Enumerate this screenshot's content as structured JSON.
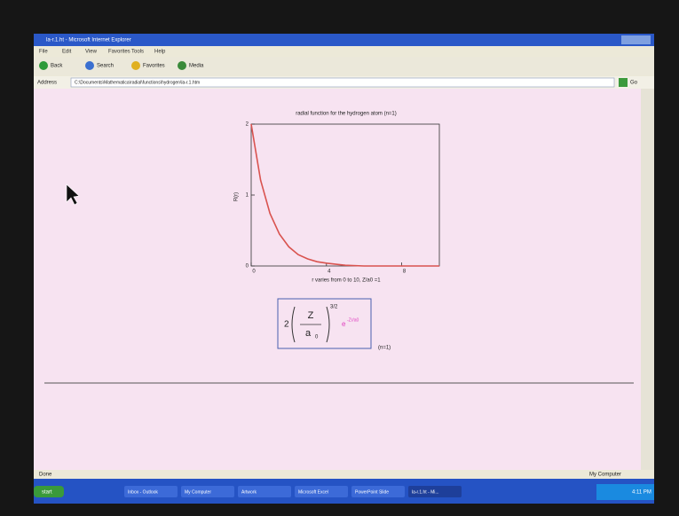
{
  "window": {
    "title": "la-r.1.ht - Microsoft Internet Explorer"
  },
  "menu": [
    "File",
    "Edit",
    "View",
    "Favorites",
    "Tools",
    "Help"
  ],
  "toolbar": [
    "Back",
    "Search",
    "Favorites",
    "Media"
  ],
  "address": {
    "label": "Address",
    "url": "C:\\Documents\\Mathematica\\radial\\functions\\hydrogen\\la-r.1.htm",
    "go": "Go"
  },
  "chart_data": {
    "type": "line",
    "title": "radial function for the hydrogen atom (n=1)",
    "y_label": "R(r)",
    "x_label": "r varies from 0 to 10, Z/a0 =1",
    "x": [
      0,
      0.5,
      1,
      1.5,
      2,
      2.5,
      3,
      3.5,
      4,
      5,
      6,
      7,
      8,
      9,
      10
    ],
    "series": [
      {
        "name": "R(r)",
        "color": "#d9534f",
        "values": [
          2,
          1.21,
          0.74,
          0.45,
          0.27,
          0.16,
          0.1,
          0.06,
          0.04,
          0.01,
          0,
          0,
          0,
          0,
          0
        ]
      }
    ],
    "xlim": [
      0,
      10
    ],
    "xticks": [
      0,
      4,
      8
    ],
    "ylim": [
      0,
      2
    ],
    "yticks": [
      0,
      1,
      2
    ]
  },
  "formula": {
    "coefficient": "2",
    "numerator": "Z",
    "denominator": "a",
    "subscript": "0",
    "exponent": "3/2",
    "exp": "e",
    "exp_power": "-Zr/a0",
    "note": "(n=1)"
  },
  "status": {
    "left": "Done",
    "right": "My Computer"
  },
  "taskbar": {
    "start": "start",
    "items": [
      "Inbox - Outlook",
      "My Computer",
      "Artwork",
      "Microsoft Excel",
      "PowerPoint Slide",
      "la-r.1.ht - Mi..."
    ],
    "clock": "4:11 PM"
  }
}
